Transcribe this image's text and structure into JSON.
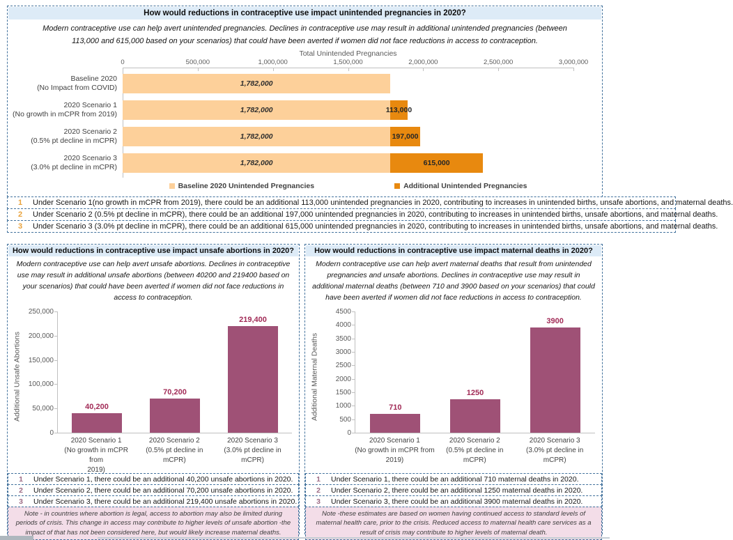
{
  "colors": {
    "header_bg": "#DDEBF7",
    "border_blue": "#41719C",
    "baseline_orange": "#FDD09A",
    "additional_orange": "#E8890F",
    "plum": "#9F5176",
    "value_label": "#A12A56",
    "note_number_orange": "#E9A23B",
    "note_number_plum": "#9C6B85",
    "pink_note_bg": "#F3DDE8",
    "axis_gray": "#595959"
  },
  "top_panel": {
    "title": "How would reductions in contraceptive use impact unintended pregnancies in 2020?",
    "subtitle": "Modern contraceptive use can help avert unintended pregnancies. Declines in contraceptive use may result in additional unintended pregnancies (between 113,000 and 615,000 based on your scenarios) that could have been averted if women did not face reductions in access to contraception.",
    "notes": [
      {
        "num": "1",
        "text": "Under Scenario 1(no growth in mCPR from 2019), there could be an additional 113,000 unintended pregnancies in 2020, contributing to increases in unintended births, unsafe abortions, and maternal deaths."
      },
      {
        "num": "2",
        "text": "Under Scenario 2 (0.5% pt decline in mCPR), there could be an additional 197,000 unintended pregnancies in 2020, contributing to increases in unintended births, unsafe abortions, and maternal deaths."
      },
      {
        "num": "3",
        "text": "Under Scenario 3 (3.0% pt decline in mCPR), there could be an additional 615,000 unintended pregnancies in 2020, contributing to increases in unintended births, unsafe abortions, and maternal deaths."
      }
    ]
  },
  "bottom_left": {
    "title": "How would reductions in contraceptive use impact unsafe abortions in 2020?",
    "subtitle": "Modern contraceptive use can help avert unsafe abortions. Declines in contraceptive use may result in additional unsafe abortions (between 40200 and 219400 based on your scenarios) that could have been averted if women did not face reductions in access to contraception.",
    "notes": [
      {
        "num": "1",
        "text": "Under Scenario 1, there could be an additional 40,200 unsafe abortions in 2020."
      },
      {
        "num": "2",
        "text": "Under Scenario 2, there could be an additional 70,200 unsafe abortions in 2020."
      },
      {
        "num": "3",
        "text": "Under Scenario 3, there could be an additional 219,400 unsafe abortions in 2020."
      }
    ],
    "footnote": "Note - in countries where abortion is legal, access to abortion may also be limited during periods of crisis. This change in access may contribute to higher levels of unsafe abortion -the impact of that has not been considered here, but would likely increase maternal deaths."
  },
  "bottom_right": {
    "title": "How would reductions in contraceptive use impact maternal deaths in 2020?",
    "subtitle": "Modern contraceptive use can help avert maternal deaths that result from unintended pregnancies and unsafe abortions.  Declines in contraceptive use may result in additional maternal deaths (between 710 and 3900 based on your scenarios) that could have been averted if women did not face reductions in access to contraception.",
    "notes": [
      {
        "num": "1",
        "text": "Under Scenario 1, there could be an additional 710 maternal deaths in 2020."
      },
      {
        "num": "2",
        "text": "Under Scenario 2, there could be an additional 1250 maternal deaths in 2020."
      },
      {
        "num": "3",
        "text": "Under Scenario 3, there could be an additional 3900 maternal deaths in 2020."
      }
    ],
    "footnote": "Note -these estimates are based on women having continued access to standard levels of maternal health care, prior to the crisis. Reduced access to maternal health care services as a result of crisis may contribute to higher levels of maternal death."
  },
  "chart_data": [
    {
      "type": "bar",
      "orientation": "horizontal-stacked",
      "title": "Total Unintended Pregnancies",
      "categories": [
        [
          "Baseline 2020",
          "(No Impact from COVID)"
        ],
        [
          "2020 Scenario 1",
          "(No growth in mCPR from 2019)"
        ],
        [
          "2020 Scenario 2",
          "(0.5% pt decline in mCPR)"
        ],
        [
          "2020 Scenario 3",
          "(3.0% pt decline in mCPR)"
        ]
      ],
      "series": [
        {
          "name": "Baseline 2020 Unintended Pregnancies",
          "values": [
            1782000,
            1782000,
            1782000,
            1782000
          ],
          "color": "#FDD09A"
        },
        {
          "name": "Additional Unintended Pregnancies",
          "values": [
            0,
            113000,
            197000,
            615000
          ],
          "color": "#E8890F"
        }
      ],
      "bar_labels": {
        "base": "1,782,000",
        "additional": [
          "",
          "113,000",
          "197,000",
          "615,000"
        ]
      },
      "xlim": [
        0,
        3000000
      ],
      "xticks": [
        "0",
        "500,000",
        "1,000,000",
        "1,500,000",
        "2,000,000",
        "2,500,000",
        "3,000,000"
      ],
      "legend_position": "bottom",
      "grid": false
    },
    {
      "type": "bar",
      "ylabel": "Additional Unsafe Abortions",
      "categories": [
        [
          "2020 Scenario 1",
          "(No growth in mCPR from",
          "2019)"
        ],
        [
          "2020 Scenario 2",
          "(0.5% pt decline in mCPR)"
        ],
        [
          "2020 Scenario 3",
          "(3.0% pt decline in mCPR)"
        ]
      ],
      "values": [
        40200,
        70200,
        219400
      ],
      "value_labels": [
        "40,200",
        "70,200",
        "219,400"
      ],
      "ylim": [
        0,
        250000
      ],
      "yticks": [
        "0",
        "50,000",
        "100,000",
        "150,000",
        "200,000",
        "250,000"
      ],
      "bar_color": "#9F5176",
      "grid": false
    },
    {
      "type": "bar",
      "ylabel": "Additional Maternal Deaths",
      "categories": [
        [
          "2020 Scenario 1",
          "(No growth in mCPR from",
          "2019)"
        ],
        [
          "2020 Scenario 2",
          "(0.5% pt decline in mCPR)"
        ],
        [
          "2020 Scenario 3",
          "(3.0% pt decline in mCPR)"
        ]
      ],
      "values": [
        710,
        1250,
        3900
      ],
      "value_labels": [
        "710",
        "1250",
        "3900"
      ],
      "ylim": [
        0,
        4500
      ],
      "yticks": [
        "0",
        "500",
        "1000",
        "1500",
        "2000",
        "2500",
        "3000",
        "3500",
        "4000",
        "4500"
      ],
      "bar_color": "#9F5176",
      "grid": false
    }
  ]
}
